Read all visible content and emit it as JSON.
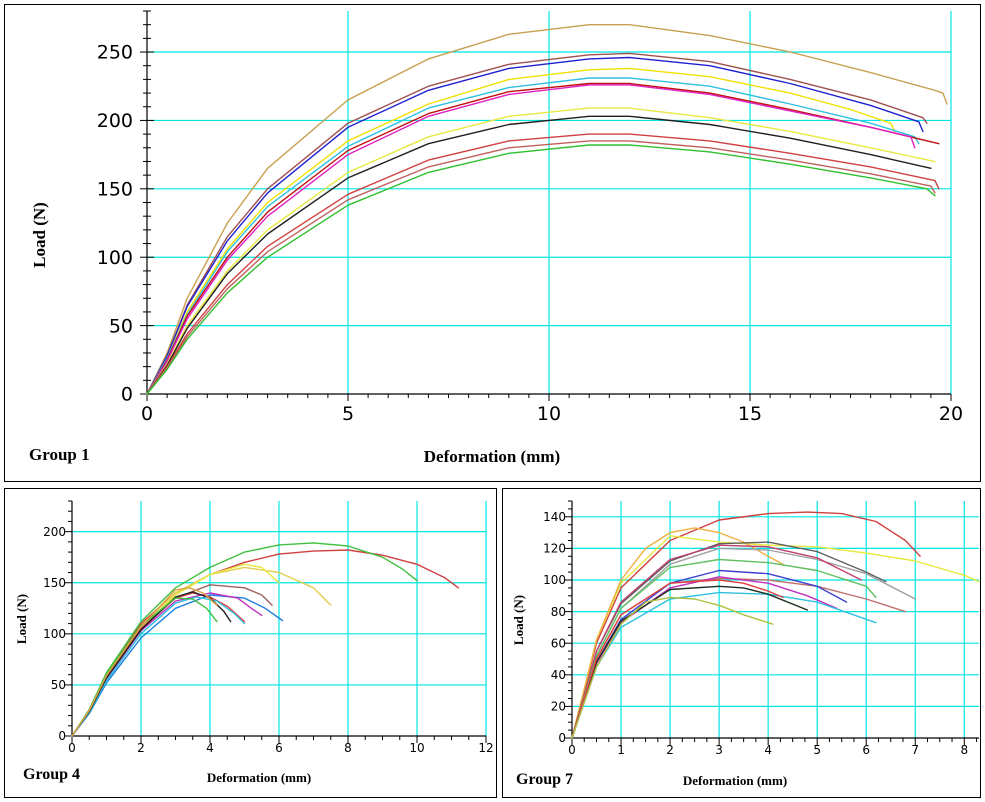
{
  "chart_data": [
    {
      "type": "line",
      "title": "",
      "group_label": "Group 1",
      "xlabel": "Deformation (mm)",
      "ylabel": "Load (N)",
      "xlim": [
        0,
        20
      ],
      "ylim": [
        0,
        280
      ],
      "xticks": [
        0,
        5,
        10,
        15,
        20
      ],
      "yticks": [
        0,
        50,
        100,
        150,
        200,
        250
      ],
      "grid": true,
      "grid_color": "#00e5e5",
      "series": [
        {
          "color": "#c8a050",
          "x": [
            0,
            0.5,
            1,
            2,
            3,
            5,
            7,
            9,
            11,
            12,
            14,
            16,
            18,
            19.6,
            19.8,
            19.9
          ],
          "y": [
            0,
            30,
            70,
            125,
            165,
            215,
            245,
            263,
            270,
            270,
            262,
            250,
            235,
            222,
            220,
            212
          ]
        },
        {
          "color": "#a05050",
          "x": [
            0,
            0.5,
            1,
            2,
            3,
            5,
            7,
            9,
            11,
            12,
            14,
            16,
            18,
            19.3,
            19.4
          ],
          "y": [
            0,
            28,
            65,
            115,
            150,
            198,
            225,
            241,
            248,
            249,
            243,
            230,
            215,
            202,
            198
          ]
        },
        {
          "color": "#2020d0",
          "x": [
            0,
            0.5,
            1,
            2,
            3,
            5,
            7,
            9,
            11,
            12,
            14,
            16,
            18,
            19.2,
            19.3
          ],
          "y": [
            0,
            28,
            64,
            112,
            147,
            195,
            222,
            238,
            245,
            246,
            240,
            227,
            211,
            199,
            192
          ]
        },
        {
          "color": "#f0e000",
          "x": [
            0,
            0.5,
            1,
            2,
            3,
            5,
            7,
            9,
            11,
            12,
            14,
            16,
            17.5,
            18.5,
            18.6
          ],
          "y": [
            0,
            26,
            60,
            106,
            140,
            185,
            212,
            230,
            237,
            238,
            232,
            220,
            208,
            198,
            192
          ]
        },
        {
          "color": "#30c0e0",
          "x": [
            0,
            0.5,
            1,
            2,
            3,
            5,
            7,
            9,
            11,
            12,
            14,
            16,
            18,
            19.1,
            19.2
          ],
          "y": [
            0,
            26,
            58,
            104,
            137,
            181,
            209,
            224,
            231,
            231,
            225,
            212,
            198,
            188,
            183
          ]
        },
        {
          "color": "#c01010",
          "x": [
            0,
            0.5,
            1,
            2,
            3,
            5,
            7,
            9,
            11,
            12,
            14,
            16,
            18,
            19.7
          ],
          "y": [
            0,
            25,
            57,
            100,
            133,
            178,
            205,
            221,
            227,
            227,
            220,
            208,
            195,
            183
          ]
        },
        {
          "color": "#e020c0",
          "x": [
            0,
            0.5,
            1,
            2,
            3,
            5,
            7,
            9,
            11,
            12,
            14,
            16,
            18,
            19.0,
            19.1
          ],
          "y": [
            0,
            24,
            55,
            98,
            130,
            175,
            203,
            219,
            226,
            226,
            219,
            207,
            195,
            188,
            180
          ]
        },
        {
          "color": "#e8e840",
          "x": [
            0,
            0.5,
            1,
            2,
            3,
            5,
            7,
            9,
            11,
            12,
            14,
            16,
            18,
            19.6
          ],
          "y": [
            0,
            22,
            50,
            90,
            120,
            162,
            188,
            203,
            209,
            209,
            202,
            192,
            180,
            170
          ]
        },
        {
          "color": "#202020",
          "x": [
            0,
            0.5,
            1,
            2,
            3,
            5,
            7,
            9,
            11,
            12,
            14,
            16,
            18,
            19.5
          ],
          "y": [
            0,
            21,
            48,
            88,
            117,
            158,
            183,
            197,
            203,
            203,
            197,
            187,
            175,
            165
          ]
        },
        {
          "color": "#d04040",
          "x": [
            0,
            0.5,
            1,
            2,
            3,
            5,
            7,
            9,
            11,
            12,
            14,
            16,
            18,
            19.6,
            19.7
          ],
          "y": [
            0,
            20,
            44,
            80,
            108,
            146,
            171,
            185,
            190,
            190,
            185,
            176,
            166,
            156,
            150
          ]
        },
        {
          "color": "#c06060",
          "x": [
            0,
            0.5,
            1,
            2,
            3,
            5,
            7,
            9,
            11,
            12,
            14,
            16,
            18,
            19.5,
            19.6
          ],
          "y": [
            0,
            19,
            42,
            77,
            104,
            142,
            166,
            180,
            185,
            185,
            180,
            171,
            161,
            152,
            147
          ]
        },
        {
          "color": "#30c030",
          "x": [
            0,
            0.5,
            1,
            2,
            3,
            5,
            7,
            9,
            11,
            12,
            14,
            16,
            18,
            19.4,
            19.6
          ],
          "y": [
            0,
            18,
            40,
            74,
            100,
            138,
            162,
            176,
            182,
            182,
            177,
            168,
            158,
            150,
            145
          ]
        }
      ]
    },
    {
      "type": "line",
      "title": "",
      "group_label": "Group 4",
      "xlabel": "Deformation (mm)",
      "ylabel": "Load (N)",
      "xlim": [
        0,
        12
      ],
      "ylim": [
        0,
        230
      ],
      "xticks": [
        0,
        2,
        4,
        6,
        8,
        10,
        12
      ],
      "yticks": [
        0,
        50,
        100,
        150,
        200
      ],
      "grid": true,
      "grid_color": "#00e5e5",
      "series": [
        {
          "color": "#d04040",
          "x": [
            0,
            0.5,
            1,
            2,
            3,
            4,
            5,
            6,
            7,
            8,
            9,
            10,
            10.8,
            11.2
          ],
          "y": [
            0,
            25,
            60,
            110,
            140,
            158,
            170,
            178,
            181,
            182,
            177,
            168,
            155,
            145
          ]
        },
        {
          "color": "#40c040",
          "x": [
            0,
            0.5,
            1,
            2,
            3,
            4,
            5,
            6,
            7,
            8,
            9,
            9.6,
            10.0
          ],
          "y": [
            0,
            26,
            62,
            112,
            145,
            165,
            180,
            187,
            189,
            186,
            175,
            163,
            152
          ]
        },
        {
          "color": "#e0d050",
          "x": [
            0,
            0.5,
            1,
            2,
            3,
            4,
            5,
            6,
            7,
            7.5
          ],
          "y": [
            0,
            25,
            60,
            108,
            140,
            158,
            165,
            160,
            145,
            128
          ]
        },
        {
          "color": "#e8e840",
          "x": [
            0,
            0.5,
            1,
            2,
            3,
            4,
            5,
            5.5,
            6.0
          ],
          "y": [
            0,
            24,
            58,
            105,
            138,
            158,
            168,
            165,
            150
          ]
        },
        {
          "color": "#a06060",
          "x": [
            0,
            0.5,
            1,
            2,
            3,
            4,
            5,
            5.5,
            5.8
          ],
          "y": [
            0,
            24,
            58,
            105,
            135,
            148,
            145,
            138,
            128
          ]
        },
        {
          "color": "#2080e0",
          "x": [
            0,
            0.5,
            1,
            2,
            3,
            4,
            5,
            5.6,
            6.1
          ],
          "y": [
            0,
            22,
            52,
            96,
            125,
            138,
            135,
            125,
            113
          ]
        },
        {
          "color": "#c030c0",
          "x": [
            0,
            0.5,
            1,
            2,
            3,
            4,
            4.8,
            5.2,
            5.5
          ],
          "y": [
            0,
            24,
            56,
            103,
            132,
            140,
            135,
            125,
            118
          ]
        },
        {
          "color": "#e04040",
          "x": [
            0,
            0.5,
            1,
            2,
            3,
            3.5,
            4,
            4.5,
            5.0
          ],
          "y": [
            0,
            25,
            58,
            105,
            135,
            140,
            136,
            127,
            112
          ]
        },
        {
          "color": "#30c0e0",
          "x": [
            0,
            0.5,
            1,
            2,
            3,
            3.6,
            4.2,
            4.7,
            5.0
          ],
          "y": [
            0,
            23,
            54,
            100,
            130,
            136,
            132,
            120,
            110
          ]
        },
        {
          "color": "#202020",
          "x": [
            0,
            0.5,
            1,
            2,
            3,
            3.5,
            4,
            4.4,
            4.6
          ],
          "y": [
            0,
            24,
            57,
            104,
            136,
            141,
            135,
            122,
            112
          ]
        },
        {
          "color": "#40c040",
          "x": [
            0,
            0.5,
            1,
            2,
            3,
            3.5,
            3.9,
            4.2
          ],
          "y": [
            0,
            25,
            60,
            108,
            135,
            134,
            125,
            112
          ]
        },
        {
          "color": "#e0a040",
          "x": [
            0,
            0.5,
            1,
            2,
            3,
            3.4,
            3.8,
            4.2
          ],
          "y": [
            0,
            25,
            59,
            107,
            143,
            145,
            140,
            128
          ]
        }
      ]
    },
    {
      "type": "line",
      "title": "",
      "group_label": "Group 7",
      "xlabel": "Deformation (mm)",
      "ylabel": "Load (N)",
      "xlim": [
        0,
        8.3
      ],
      "ylim": [
        0,
        150
      ],
      "xticks": [
        0,
        1,
        2,
        3,
        4,
        5,
        6,
        7,
        8
      ],
      "yticks": [
        0,
        20,
        40,
        60,
        80,
        100,
        120,
        140
      ],
      "grid": true,
      "grid_color": "#00e5e5",
      "series": [
        {
          "color": "#d04040",
          "x": [
            0,
            0.5,
            1,
            2,
            3,
            4,
            4.8,
            5.5,
            6.2,
            6.8,
            7.1
          ],
          "y": [
            0,
            60,
            95,
            125,
            138,
            142,
            143,
            142,
            137,
            125,
            115
          ]
        },
        {
          "color": "#e8e840",
          "x": [
            0,
            0.5,
            1,
            2,
            3,
            4,
            5,
            6,
            7,
            8,
            8.3
          ],
          "y": [
            0,
            62,
            98,
            128,
            124,
            122,
            121,
            117,
            112,
            103,
            99
          ]
        },
        {
          "color": "#f0b040",
          "x": [
            0,
            0.5,
            1,
            1.5,
            2,
            2.5,
            3,
            3.5,
            4,
            4.3
          ],
          "y": [
            0,
            62,
            100,
            120,
            130,
            133,
            130,
            124,
            115,
            110
          ]
        },
        {
          "color": "#606060",
          "x": [
            0,
            0.5,
            1,
            2,
            3,
            4,
            5,
            6,
            6.4
          ],
          "y": [
            0,
            55,
            85,
            112,
            123,
            124,
            118,
            105,
            99
          ]
        },
        {
          "color": "#a0a0a0",
          "x": [
            0,
            0.5,
            1,
            2,
            3,
            4,
            5,
            6,
            7.0
          ],
          "y": [
            0,
            52,
            82,
            110,
            120,
            119,
            113,
            104,
            88
          ]
        },
        {
          "color": "#c04070",
          "x": [
            0,
            0.5,
            1,
            2,
            3,
            4,
            5,
            5.9
          ],
          "y": [
            0,
            55,
            86,
            113,
            122,
            121,
            114,
            100
          ]
        },
        {
          "color": "#60c060",
          "x": [
            0,
            0.5,
            1,
            2,
            3,
            4,
            5,
            6,
            6.2
          ],
          "y": [
            0,
            52,
            82,
            108,
            113,
            111,
            106,
            96,
            89
          ]
        },
        {
          "color": "#c07070",
          "x": [
            0,
            0.5,
            1,
            2,
            3,
            4,
            5,
            6,
            6.8
          ],
          "y": [
            0,
            50,
            78,
            98,
            101,
            100,
            96,
            88,
            80
          ]
        },
        {
          "color": "#4040d0",
          "x": [
            0,
            0.5,
            1,
            2,
            3,
            4,
            5,
            5.6
          ],
          "y": [
            0,
            48,
            75,
            98,
            106,
            104,
            96,
            86
          ]
        },
        {
          "color": "#c030c0",
          "x": [
            0,
            0.5,
            1,
            2,
            3,
            4,
            4.8,
            5.4
          ],
          "y": [
            0,
            47,
            73,
            95,
            102,
            98,
            90,
            82
          ]
        },
        {
          "color": "#30c0e0",
          "x": [
            0,
            0.5,
            1,
            2,
            3,
            4,
            5,
            6.2
          ],
          "y": [
            0,
            45,
            70,
            88,
            92,
            91,
            86,
            73
          ]
        },
        {
          "color": "#203020",
          "x": [
            0,
            0.5,
            1,
            2,
            3,
            3.5,
            4,
            4.8
          ],
          "y": [
            0,
            48,
            74,
            94,
            96,
            95,
            91,
            81
          ]
        },
        {
          "color": "#e04040",
          "x": [
            0,
            0.5,
            1,
            2,
            3,
            3.5,
            4,
            4.3
          ],
          "y": [
            0,
            50,
            78,
            98,
            100,
            98,
            93,
            89
          ]
        },
        {
          "color": "#b0c040",
          "x": [
            0,
            0.5,
            1,
            1.5,
            2,
            2.5,
            3,
            3.5,
            4.1
          ],
          "y": [
            0,
            45,
            72,
            86,
            89,
            88,
            84,
            78,
            72
          ]
        }
      ]
    }
  ]
}
